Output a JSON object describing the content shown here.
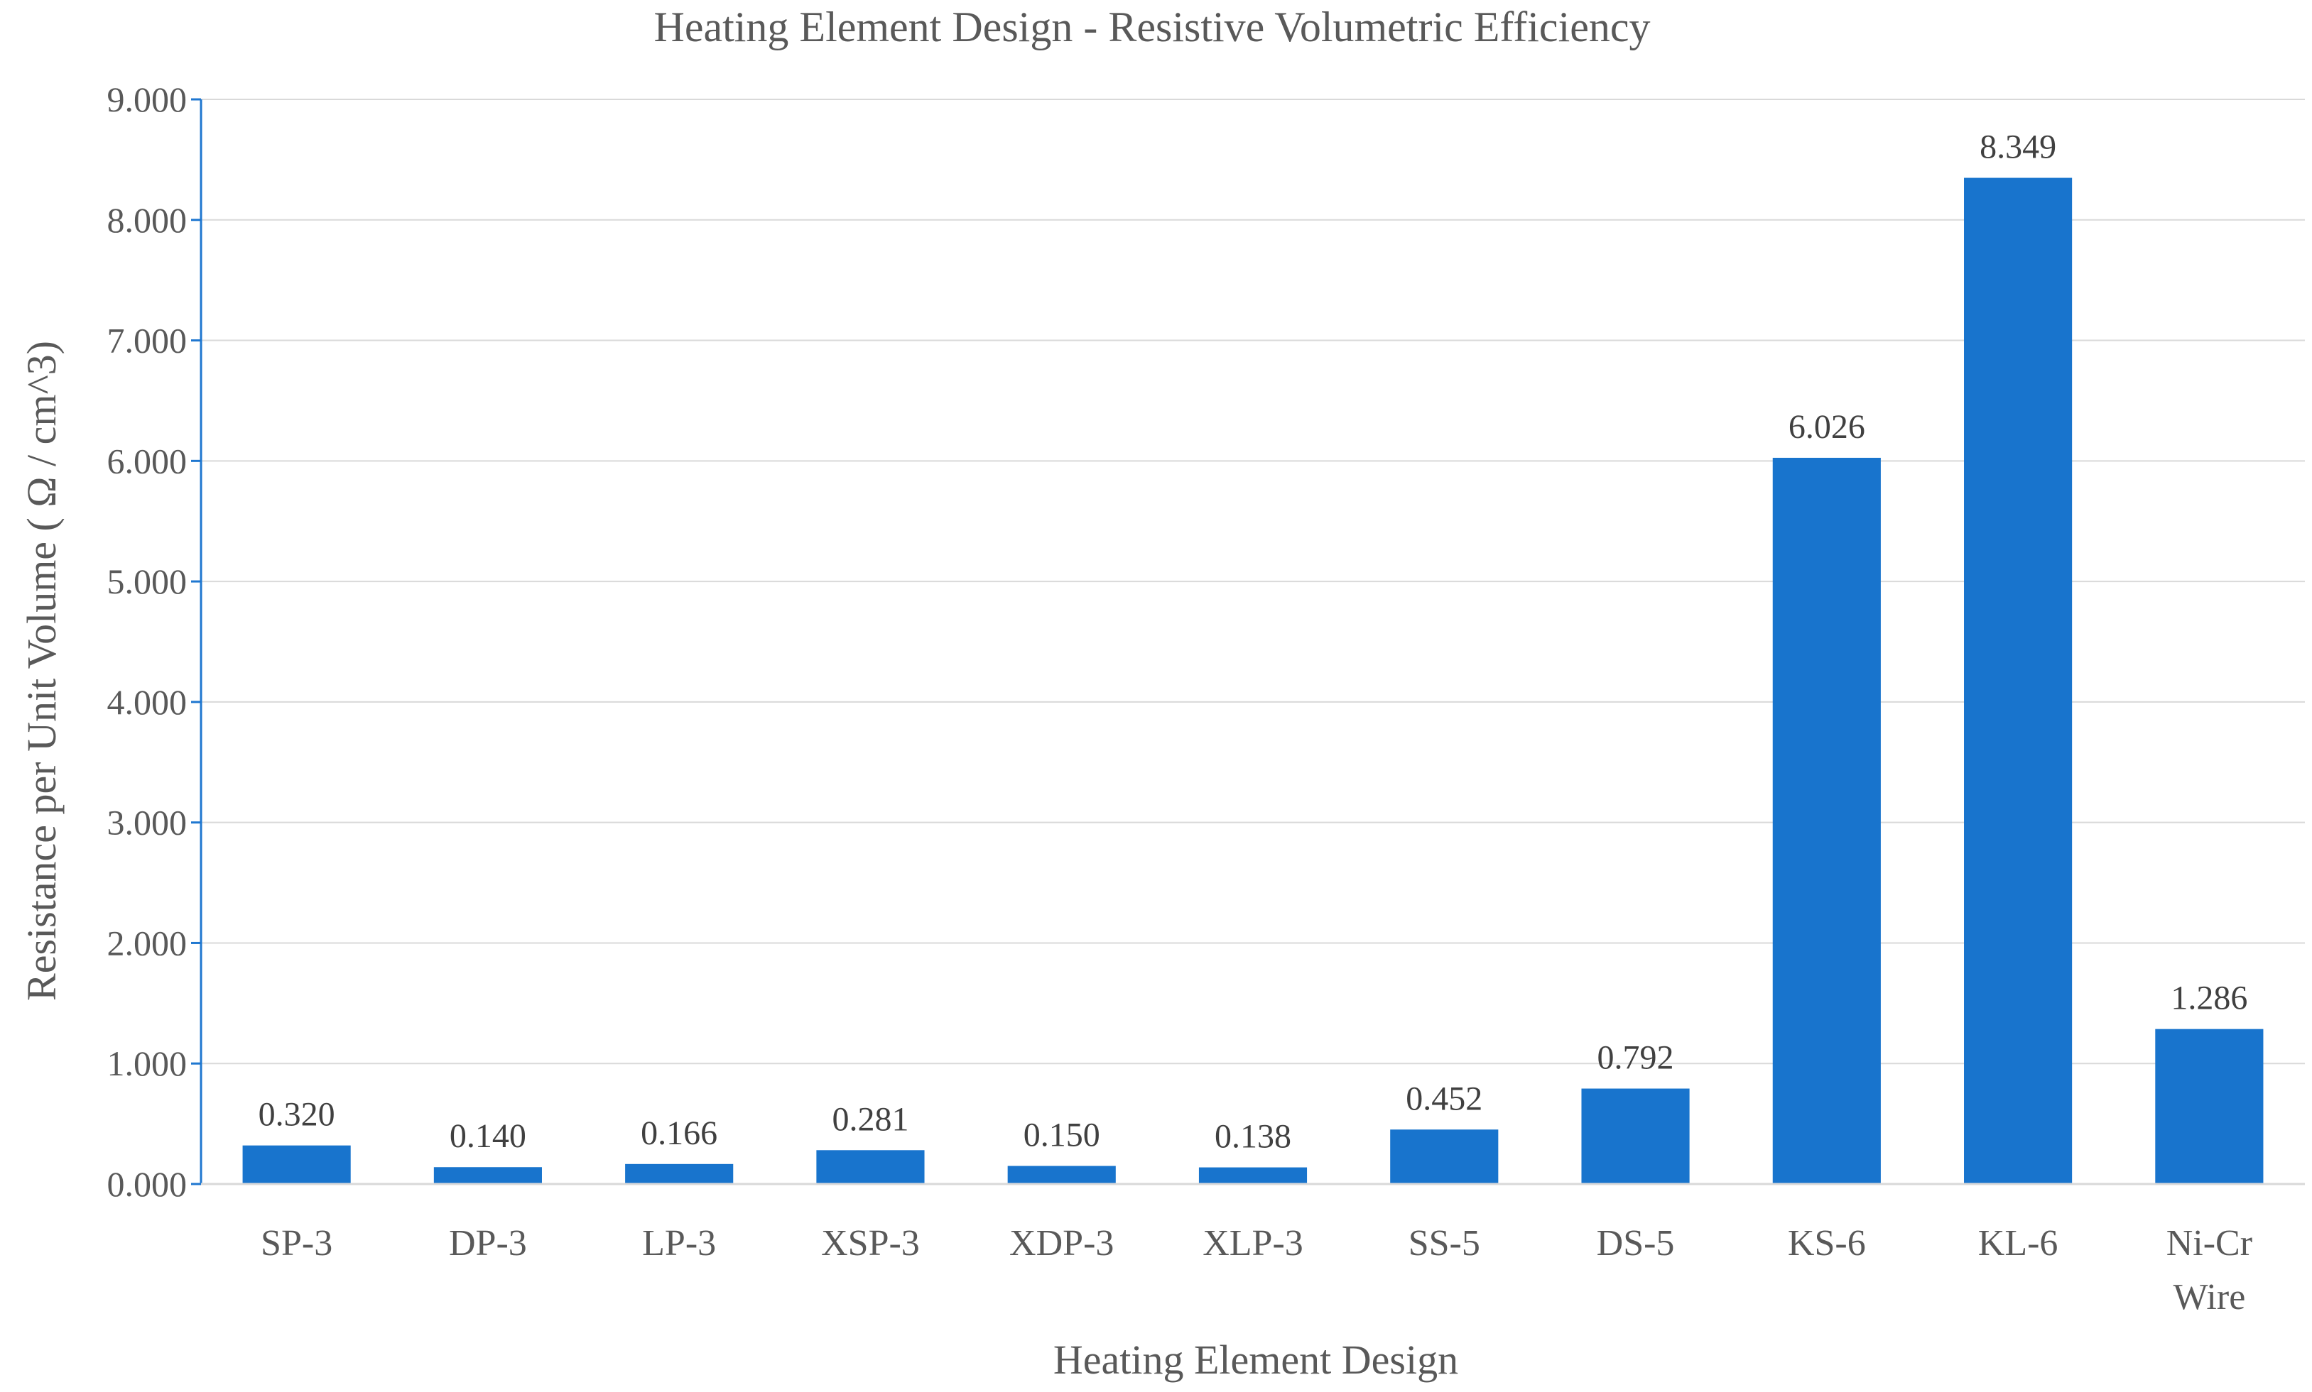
{
  "chart_data": {
    "type": "bar",
    "title": "Heating Element Design - Resistive Volumetric Efficiency",
    "xlabel": "Heating Element Design",
    "ylabel": "Resistance per Unit Volume ( Ω / cm^3)",
    "categories": [
      [
        "SP-3"
      ],
      [
        "DP-3"
      ],
      [
        "LP-3"
      ],
      [
        "XSP-3"
      ],
      [
        "XDP-3"
      ],
      [
        "XLP-3"
      ],
      [
        "SS-5"
      ],
      [
        "DS-5"
      ],
      [
        "KS-6"
      ],
      [
        "KL-6"
      ],
      [
        "Ni-Cr",
        "Wire"
      ]
    ],
    "values": [
      0.32,
      0.14,
      0.166,
      0.281,
      0.15,
      0.138,
      0.452,
      0.792,
      6.026,
      8.349,
      1.286
    ],
    "value_labels": [
      "0.320",
      "0.140",
      "0.166",
      "0.281",
      "0.150",
      "0.138",
      "0.452",
      "0.792",
      "6.026",
      "8.349",
      "1.286"
    ],
    "ylim": [
      0,
      9
    ],
    "yticks": [
      0,
      1,
      2,
      3,
      4,
      5,
      6,
      7,
      8,
      9
    ],
    "ytick_labels": [
      "0.000",
      "1.000",
      "2.000",
      "3.000",
      "4.000",
      "5.000",
      "6.000",
      "7.000",
      "8.000",
      "9.000"
    ],
    "grid": true,
    "legend": "none",
    "bar_color": "#1874CD"
  }
}
